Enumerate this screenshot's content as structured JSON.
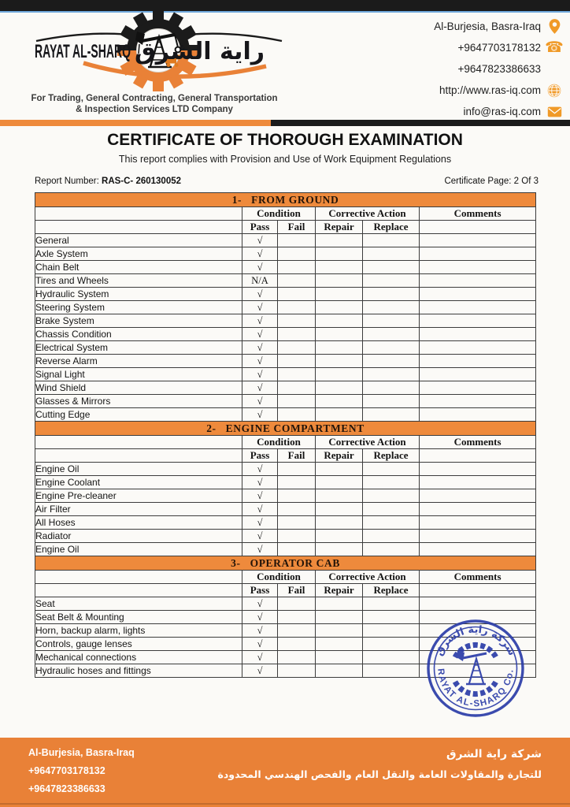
{
  "colors": {
    "orange_header": "#EE8A3C",
    "orange_footer": "#E98137",
    "dark_bar": "#1B1B1B",
    "accent_blue": "#6FA8DC",
    "stamp_blue": "#2B3DA8",
    "icon_orange": "#F09A28"
  },
  "header": {
    "logo": {
      "company_name_en": "RAYAT AL-SHARQ",
      "company_name_ar": "راية الشرق",
      "tagline_line1": "For Trading, General Contracting, General Transportation",
      "tagline_line2": "& Inspection Services LTD Company"
    },
    "contacts": [
      {
        "text": "Al-Burjesia, Basra-Iraq",
        "icon": "location-pin-icon"
      },
      {
        "text": "+9647703178132",
        "icon": "phone-icon"
      },
      {
        "text": "+9647823386633",
        "icon": ""
      },
      {
        "text": "http://www.ras-iq.com",
        "icon": "globe-icon"
      },
      {
        "text": "info@ras-iq.com",
        "icon": "envelope-icon"
      }
    ]
  },
  "title_block": {
    "title": "CERTIFICATE OF THOROUGH EXAMINATION",
    "subtitle": "This report complies with Provision and Use of Work Equipment Regulations"
  },
  "report_info": {
    "report_number_label": "Report Number:",
    "report_number_value": "RAS-C- 260130052",
    "certificate_page_label": "Certificate Page:",
    "certificate_page_value": "2 Of 3"
  },
  "table": {
    "column_headers": {
      "condition": "Condition",
      "corrective_action": "Corrective Action",
      "comments": "Comments",
      "pass": "Pass",
      "fail": "Fail",
      "repair": "Repair",
      "replace": "Replace"
    },
    "sections": [
      {
        "number": "1-",
        "title": "FROM GROUND",
        "rows": [
          {
            "item": "General",
            "pass": "√"
          },
          {
            "item": "Axle System",
            "pass": "√"
          },
          {
            "item": "Chain Belt",
            "pass": "√"
          },
          {
            "item": "Tires and Wheels",
            "pass": "N/A"
          },
          {
            "item": "Hydraulic System",
            "pass": "√"
          },
          {
            "item": "Steering System",
            "pass": "√"
          },
          {
            "item": "Brake System",
            "pass": "√"
          },
          {
            "item": "Chassis Condition",
            "pass": "√"
          },
          {
            "item": "Electrical System",
            "pass": "√"
          },
          {
            "item": "Reverse Alarm",
            "pass": "√"
          },
          {
            "item": "Signal Light",
            "pass": "√"
          },
          {
            "item": "Wind Shield",
            "pass": "√"
          },
          {
            "item": "Glasses & Mirrors",
            "pass": "√"
          },
          {
            "item": "Cutting Edge",
            "pass": "√"
          }
        ]
      },
      {
        "number": "2-",
        "title": "ENGINE COMPARTMENT",
        "rows": [
          {
            "item": "Engine Oil",
            "pass": "√"
          },
          {
            "item": "Engine Coolant",
            "pass": "√"
          },
          {
            "item": "Engine Pre-cleaner",
            "pass": "√"
          },
          {
            "item": "Air Filter",
            "pass": "√"
          },
          {
            "item": "All Hoses",
            "pass": "√"
          },
          {
            "item": "Radiator",
            "pass": "√"
          },
          {
            "item": "Engine Oil",
            "pass": "√"
          }
        ]
      },
      {
        "number": "3-",
        "title": "OPERATOR CAB",
        "rows": [
          {
            "item": "Seat",
            "pass": "√"
          },
          {
            "item": "Seat Belt & Mounting",
            "pass": "√"
          },
          {
            "item": "Horn, backup alarm, lights",
            "pass": "√"
          },
          {
            "item": "Controls, gauge lenses",
            "pass": "√"
          },
          {
            "item": "Mechanical connections",
            "pass": "√"
          },
          {
            "item": "Hydraulic hoses and fittings",
            "pass": "√"
          }
        ]
      }
    ]
  },
  "stamp": {
    "company_name_ar": "شركة راية الشرق",
    "company_name_en": "RAYAT AL-SHARQ Co."
  },
  "footer": {
    "address": "Al-Burjesia, Basra-Iraq",
    "phone1": "+9647703178132",
    "phone2": "+9647823386633",
    "company_name_ar": "شركة راية الشرق",
    "description_ar": "للتجارة والمقاولات العامة والنقل العام والفحص الهندسي المحدودة"
  }
}
